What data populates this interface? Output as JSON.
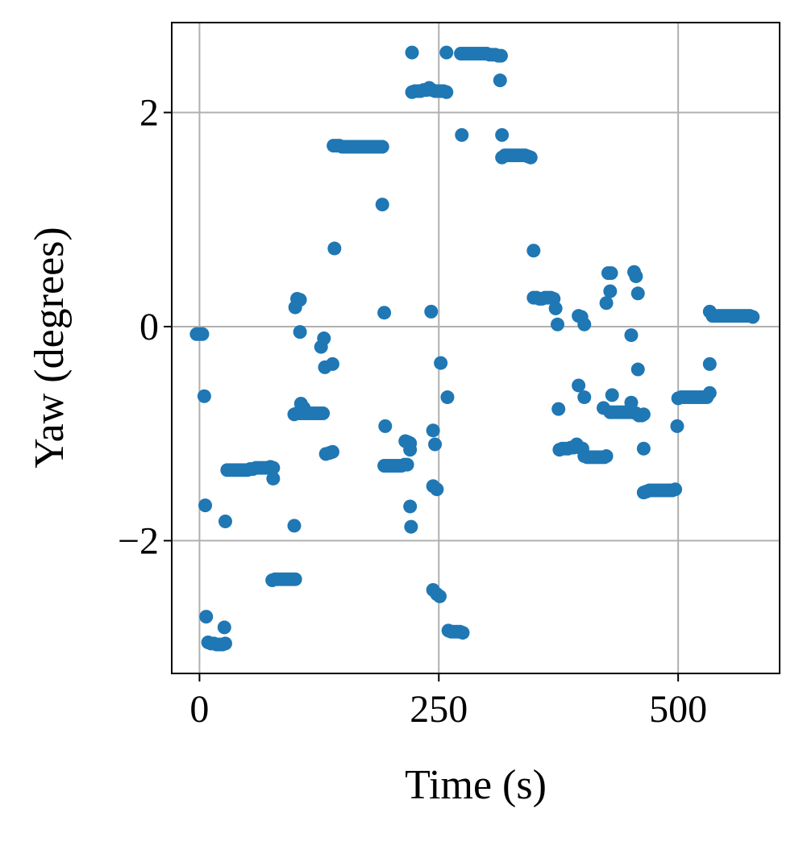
{
  "chart_data": {
    "type": "scatter",
    "xlabel": "Time (s)",
    "ylabel": "Yaw (degrees)",
    "color": "#1f77b4",
    "grid": true,
    "xlim": [
      -29,
      606
    ],
    "ylim": [
      -3.24,
      2.84
    ],
    "xticks": [
      0,
      250,
      500
    ],
    "yticks": [
      {
        "value": -2,
        "label": "−2"
      },
      0,
      2
    ],
    "x": [
      -3,
      0,
      3,
      5,
      6,
      7,
      9,
      12,
      15,
      18,
      21,
      24,
      27,
      26,
      27,
      29,
      32,
      35,
      38,
      41,
      44,
      47,
      50,
      53,
      56,
      59,
      62,
      65,
      68,
      71,
      74,
      77,
      77,
      76,
      79,
      82,
      85,
      88,
      91,
      94,
      97,
      100,
      99,
      99,
      102,
      105,
      108,
      111,
      114,
      117,
      120,
      123,
      126,
      129,
      100,
      102,
      105,
      105,
      106,
      109,
      127,
      130,
      131,
      139,
      132,
      136,
      139,
      141,
      140,
      143,
      146,
      149,
      152,
      155,
      158,
      161,
      164,
      167,
      170,
      173,
      176,
      179,
      182,
      185,
      188,
      191,
      191,
      193,
      194,
      193,
      196,
      199,
      202,
      205,
      208,
      211,
      214,
      217,
      215,
      218,
      220,
      220,
      220,
      221,
      222,
      222,
      225,
      228,
      231,
      234,
      237,
      240,
      243,
      246,
      249,
      252,
      255,
      258,
      242,
      244,
      246,
      244,
      248,
      244,
      248,
      251,
      252,
      258,
      259,
      260,
      263,
      266,
      269,
      272,
      275,
      274,
      273,
      276,
      279,
      282,
      285,
      288,
      291,
      294,
      297,
      300,
      303,
      306,
      309,
      312,
      315,
      314,
      316,
      316,
      319,
      322,
      325,
      328,
      331,
      334,
      337,
      340,
      343,
      346,
      349,
      349,
      352,
      355,
      358,
      361,
      364,
      367,
      370,
      372,
      374,
      375,
      376,
      379,
      382,
      385,
      388,
      391,
      394,
      397,
      400,
      396,
      399,
      402,
      396,
      402,
      402,
      405,
      408,
      411,
      414,
      417,
      420,
      423,
      425,
      422,
      425,
      427,
      430,
      429,
      431,
      429,
      432,
      435,
      438,
      441,
      444,
      447,
      450,
      453,
      456,
      459,
      462,
      464,
      451,
      454,
      456,
      458,
      451,
      458,
      464,
      464,
      467,
      470,
      473,
      476,
      479,
      482,
      485,
      488,
      491,
      494,
      497,
      499,
      500,
      503,
      506,
      509,
      512,
      515,
      518,
      521,
      524,
      527,
      530,
      533,
      533,
      533,
      536,
      539,
      542,
      545,
      548,
      551,
      554,
      557,
      560,
      563,
      566,
      569,
      572,
      575,
      578
    ],
    "values": [
      -0.07,
      -0.07,
      -0.07,
      -0.65,
      -1.67,
      -2.71,
      -2.95,
      -2.96,
      -2.96,
      -2.97,
      -2.97,
      -2.97,
      -2.96,
      -2.81,
      -1.82,
      -1.34,
      -1.34,
      -1.34,
      -1.34,
      -1.34,
      -1.34,
      -1.34,
      -1.34,
      -1.33,
      -1.33,
      -1.32,
      -1.32,
      -1.32,
      -1.32,
      -1.32,
      -1.31,
      -1.32,
      -1.42,
      -2.37,
      -2.36,
      -2.36,
      -2.36,
      -2.36,
      -2.36,
      -2.36,
      -2.36,
      -2.36,
      -1.86,
      -0.82,
      -0.81,
      -0.81,
      -0.81,
      -0.81,
      -0.81,
      -0.81,
      -0.81,
      -0.81,
      -0.81,
      -0.81,
      0.18,
      0.26,
      0.25,
      -0.05,
      -0.72,
      -0.76,
      -0.19,
      -0.11,
      -0.38,
      -0.35,
      -1.19,
      -1.18,
      -1.17,
      0.73,
      1.69,
      1.69,
      1.69,
      1.68,
      1.68,
      1.68,
      1.68,
      1.68,
      1.68,
      1.68,
      1.68,
      1.68,
      1.68,
      1.68,
      1.68,
      1.68,
      1.68,
      1.68,
      1.14,
      0.13,
      -0.93,
      -1.3,
      -1.3,
      -1.3,
      -1.3,
      -1.3,
      -1.3,
      -1.3,
      -1.29,
      -1.29,
      -1.07,
      -1.08,
      -1.09,
      -1.15,
      -1.68,
      -1.87,
      2.56,
      2.19,
      2.2,
      2.2,
      2.2,
      2.21,
      2.21,
      2.23,
      2.21,
      2.2,
      2.2,
      2.2,
      2.2,
      2.19,
      0.14,
      -0.97,
      -1.1,
      -1.49,
      -1.52,
      -2.46,
      -2.5,
      -2.52,
      -0.34,
      2.56,
      -0.66,
      -2.84,
      -2.85,
      -2.85,
      -2.85,
      -2.85,
      -2.86,
      1.79,
      2.55,
      2.55,
      2.55,
      2.55,
      2.55,
      2.55,
      2.55,
      2.55,
      2.55,
      2.55,
      2.54,
      2.54,
      2.54,
      2.53,
      2.53,
      2.3,
      1.79,
      1.58,
      1.6,
      1.6,
      1.6,
      1.6,
      1.6,
      1.6,
      1.6,
      1.6,
      1.59,
      1.58,
      0.71,
      0.27,
      0.27,
      0.26,
      0.26,
      0.27,
      0.27,
      0.27,
      0.26,
      0.17,
      0.02,
      -0.77,
      -1.15,
      -1.14,
      -1.14,
      -1.14,
      -1.13,
      -1.13,
      -1.1,
      -1.13,
      -1.14,
      0.1,
      0.09,
      0.02,
      -0.55,
      -0.66,
      -1.21,
      -1.22,
      -1.22,
      -1.22,
      -1.22,
      -1.22,
      -1.22,
      -1.22,
      -1.21,
      -0.76,
      0.22,
      0.5,
      0.5,
      0.33,
      -0.64,
      -0.8,
      -0.8,
      -0.8,
      -0.8,
      -0.8,
      -0.8,
      -0.8,
      -0.8,
      -0.8,
      -0.81,
      -0.83,
      -0.83,
      -0.82,
      -0.08,
      0.51,
      0.47,
      0.31,
      -0.71,
      -0.4,
      -1.14,
      -1.55,
      -1.54,
      -1.53,
      -1.53,
      -1.53,
      -1.53,
      -1.53,
      -1.53,
      -1.53,
      -1.53,
      -1.53,
      -1.52,
      -0.93,
      -0.67,
      -0.66,
      -0.66,
      -0.66,
      -0.66,
      -0.66,
      -0.66,
      -0.66,
      -0.66,
      -0.66,
      -0.66,
      -0.62,
      -0.35,
      0.14,
      0.1,
      0.1,
      0.1,
      0.1,
      0.1,
      0.1,
      0.1,
      0.1,
      0.1,
      0.1,
      0.1,
      0.1,
      0.1,
      0.1,
      0.09
    ]
  }
}
